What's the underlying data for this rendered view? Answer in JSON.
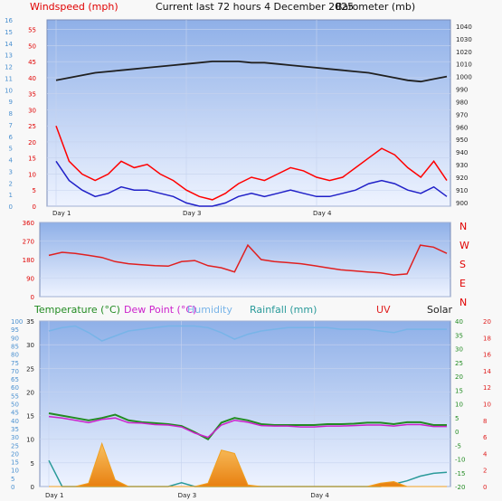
{
  "header": {
    "windspeed_label": "Windspeed (mph)",
    "title": "Current last 72 hours 4 December 2025",
    "barometer_label": "Barometer (mb)"
  },
  "legend2": {
    "temperature": "Temperature (°C)",
    "dewpoint": "Dew Point (°C)",
    "humidity": "Humidity",
    "rainfall": "Rainfall (mm)",
    "uv": "UV",
    "solar": "Solar"
  },
  "colors": {
    "frame": "#f8f8f8",
    "plot_bg_top": "#8fb0e8",
    "plot_bg_bottom": "#eef3ff",
    "grid": "#c6d3ee",
    "wind_gust": "#ff0000",
    "wind_avg": "#2020c8",
    "barometer": "#202020",
    "wind_dir": "#e02020",
    "temperature": "#228b22",
    "dewpoint": "#cc22cc",
    "humidity": "#78b4e8",
    "rainfall": "#2a9a9a",
    "uv": "#e02020",
    "solar": "#f0a020",
    "left_axis_text": "#4a90d0",
    "right_axis_text": "#222222"
  },
  "chart_data": [
    {
      "type": "line",
      "name": "wind-and-barometer",
      "days": [
        "Day 1",
        "Day 3",
        "Day 4"
      ],
      "day_positions": [
        0,
        1,
        2
      ],
      "left_ticks_outer": [
        "0",
        "1",
        "2",
        "3",
        "4",
        "5",
        "6",
        "7",
        "8",
        "9",
        "10",
        "11",
        "12",
        "13",
        "14",
        "15",
        "16"
      ],
      "left_ticks_inner": [
        "0",
        "5",
        "10",
        "15",
        "20",
        "25",
        "30",
        "35",
        "40",
        "45",
        "50",
        "55"
      ],
      "right_ticks": [
        "900",
        "910",
        "920",
        "930",
        "940",
        "950",
        "960",
        "970",
        "980",
        "990",
        "1000",
        "1010",
        "1020",
        "1030",
        "1040"
      ],
      "ylim_wind": [
        0,
        58
      ],
      "ylim_baro": [
        897,
        1045
      ],
      "x": [
        0,
        0.1,
        0.2,
        0.3,
        0.4,
        0.5,
        0.6,
        0.7,
        0.8,
        0.9,
        1.0,
        1.1,
        1.2,
        1.3,
        1.4,
        1.5,
        1.6,
        1.7,
        1.8,
        1.9,
        2.0,
        2.1,
        2.2,
        2.3,
        2.4,
        2.5,
        2.6,
        2.7,
        2.8,
        2.9,
        3.0
      ],
      "series": [
        {
          "key": "gust",
          "values": [
            25,
            14,
            10,
            8,
            10,
            14,
            12,
            13,
            10,
            8,
            5,
            3,
            2,
            4,
            7,
            9,
            8,
            10,
            12,
            11,
            9,
            8,
            9,
            12,
            15,
            18,
            16,
            12,
            9,
            14,
            8
          ]
        },
        {
          "key": "average",
          "values": [
            14,
            8,
            5,
            3,
            4,
            6,
            5,
            5,
            4,
            3,
            1,
            0,
            0,
            1,
            3,
            4,
            3,
            4,
            5,
            4,
            3,
            3,
            4,
            5,
            7,
            8,
            7,
            5,
            4,
            6,
            3
          ]
        },
        {
          "key": "barometer",
          "values": [
            997,
            999,
            1001,
            1003,
            1004,
            1005,
            1006,
            1007,
            1008,
            1009,
            1010,
            1011,
            1012,
            1012,
            1012,
            1011,
            1011,
            1010,
            1009,
            1008,
            1007,
            1006,
            1005,
            1004,
            1003,
            1001,
            999,
            997,
            996,
            998,
            1000
          ]
        }
      ]
    },
    {
      "type": "line",
      "name": "wind-direction",
      "left_ticks": [
        "0",
        "90",
        "180",
        "270",
        "360"
      ],
      "right_ticks": [
        "N",
        "W",
        "S",
        "E",
        "N"
      ],
      "ylim": [
        0,
        360
      ],
      "x": [
        0,
        0.1,
        0.2,
        0.3,
        0.4,
        0.5,
        0.6,
        0.7,
        0.8,
        0.9,
        1.0,
        1.1,
        1.2,
        1.3,
        1.4,
        1.5,
        1.6,
        1.7,
        1.8,
        1.9,
        2.0,
        2.1,
        2.2,
        2.3,
        2.4,
        2.5,
        2.6,
        2.7,
        2.8,
        2.9,
        3.0
      ],
      "values": [
        200,
        215,
        210,
        200,
        190,
        170,
        160,
        155,
        150,
        148,
        170,
        175,
        150,
        140,
        120,
        250,
        180,
        170,
        165,
        160,
        150,
        140,
        130,
        125,
        120,
        115,
        105,
        110,
        250,
        240,
        210
      ]
    },
    {
      "type": "line",
      "name": "temperature-humidity-rain",
      "left_ticks": [
        "0",
        "5",
        "10",
        "15",
        "20",
        "25",
        "30",
        "35",
        "40",
        "45",
        "50",
        "55",
        "60",
        "65",
        "70",
        "75",
        "80",
        "85",
        "90",
        "95",
        "100"
      ],
      "mid_ticks": [
        "-20",
        "-15",
        "-10",
        "-5",
        "0",
        "5",
        "10",
        "15",
        "20",
        "25",
        "30",
        "35",
        "40"
      ],
      "red_ticks": [
        "0",
        "2",
        "4",
        "6",
        "8",
        "10",
        "12",
        "14",
        "16",
        "18",
        "20"
      ],
      "inner_ticks": [
        "0",
        "5",
        "10",
        "15",
        "20",
        "25",
        "30",
        "35"
      ],
      "x": [
        0,
        0.1,
        0.2,
        0.3,
        0.4,
        0.5,
        0.6,
        0.7,
        0.8,
        0.9,
        1.0,
        1.1,
        1.2,
        1.3,
        1.4,
        1.5,
        1.6,
        1.7,
        1.8,
        1.9,
        2.0,
        2.1,
        2.2,
        2.3,
        2.4,
        2.5,
        2.6,
        2.7,
        2.8,
        2.9,
        3.0
      ],
      "series": [
        {
          "key": "temperature",
          "values": [
            15.5,
            15,
            14.5,
            14,
            14.5,
            15.2,
            14,
            13.6,
            13.4,
            13.2,
            12.8,
            11.5,
            10.0,
            13.5,
            14.5,
            14,
            13.2,
            13,
            13,
            13,
            13,
            13.2,
            13.2,
            13.3,
            13.5,
            13.5,
            13.2,
            13.6,
            13.6,
            13,
            13
          ]
        },
        {
          "key": "dewpoint",
          "values": [
            14.8,
            14.5,
            14,
            13.5,
            14.2,
            14.5,
            13.5,
            13.4,
            13.1,
            13,
            12.6,
            11.3,
            10.4,
            13.0,
            14.0,
            13.6,
            12.9,
            12.8,
            12.8,
            12.6,
            12.6,
            12.8,
            12.8,
            12.9,
            13.0,
            13.0,
            12.8,
            13.1,
            13.1,
            12.7,
            12.7
          ]
        },
        {
          "key": "humidity",
          "values": [
            94,
            96,
            97,
            93,
            88,
            91,
            94,
            95,
            96,
            97,
            97,
            97,
            96,
            93,
            89,
            92,
            94,
            95,
            96,
            96,
            96,
            96,
            95,
            95,
            95,
            94,
            93,
            95,
            95,
            95,
            95
          ]
        },
        {
          "key": "rainfall",
          "values": [
            5.5,
            0,
            0,
            0,
            0,
            0,
            0,
            0,
            0,
            0,
            0.8,
            0,
            0,
            0,
            0,
            0,
            0,
            0,
            0,
            0,
            0,
            0,
            0,
            0,
            0,
            0,
            0.5,
            1.2,
            2.2,
            2.8,
            3.0
          ]
        },
        {
          "key": "solar",
          "values": [
            0,
            0,
            0,
            2,
            26,
            4,
            0,
            0,
            0,
            0,
            0,
            0,
            2,
            22,
            20,
            1,
            0,
            0,
            0,
            0,
            0,
            0,
            0,
            0,
            0,
            2,
            3,
            0,
            0,
            0,
            0
          ]
        }
      ]
    }
  ]
}
